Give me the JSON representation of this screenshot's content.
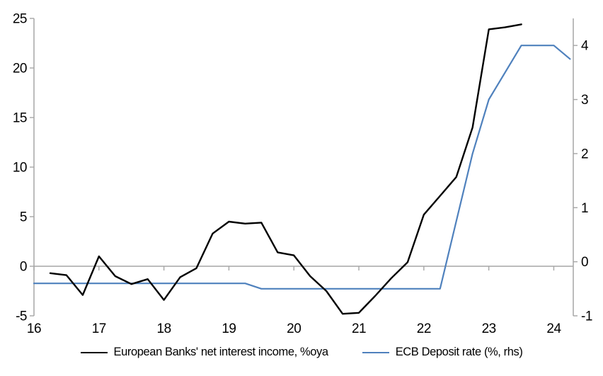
{
  "chart_data": {
    "type": "line",
    "title": "",
    "xlabel": "",
    "ylabel_left": "",
    "ylabel_right": "",
    "grid": "off",
    "legend_position": "bottom-center",
    "axis_color": "#a6a6a6",
    "label_color": "#000000",
    "x_axis": {
      "tick_years": [
        16,
        17,
        18,
        19,
        20,
        21,
        22,
        23,
        24
      ],
      "range": [
        16,
        24.3
      ]
    },
    "left_axis": {
      "ticks": [
        -5,
        0,
        5,
        10,
        15,
        20,
        25
      ],
      "range": [
        -5,
        25
      ]
    },
    "right_axis": {
      "ticks": [
        -1,
        0,
        1,
        2,
        3,
        4
      ],
      "range": [
        -1,
        4.5
      ]
    },
    "series": [
      {
        "name": "European Banks' net interest income, %oya",
        "axis": "left",
        "color": "#000000",
        "stroke_width": 2.4,
        "x": [
          16.25,
          16.5,
          16.75,
          17.0,
          17.25,
          17.5,
          17.75,
          18.0,
          18.25,
          18.5,
          18.75,
          19.0,
          19.25,
          19.5,
          19.75,
          20.0,
          20.25,
          20.5,
          20.75,
          21.0,
          21.25,
          21.5,
          21.75,
          22.0,
          22.25,
          22.5,
          22.75,
          23.0,
          23.25,
          23.5
        ],
        "values": [
          -0.7,
          -0.9,
          -2.9,
          1.0,
          -1.0,
          -1.8,
          -1.3,
          -3.4,
          -1.1,
          -0.2,
          3.3,
          4.5,
          4.3,
          4.4,
          1.4,
          1.1,
          -1.0,
          -2.5,
          -4.8,
          -4.7,
          -3.0,
          -1.2,
          0.4,
          5.2,
          7.1,
          9.0,
          14.0,
          23.9,
          24.1,
          24.4
        ]
      },
      {
        "name": "ECB Deposit rate (%, rhs)",
        "axis": "right",
        "color": "#4f81bd",
        "stroke_width": 2.2,
        "x": [
          16.0,
          16.25,
          16.5,
          16.75,
          17.0,
          17.25,
          17.5,
          17.75,
          18.0,
          18.25,
          18.5,
          18.75,
          19.0,
          19.25,
          19.5,
          19.75,
          20.0,
          20.25,
          20.5,
          20.75,
          21.0,
          21.25,
          21.5,
          21.75,
          22.0,
          22.25,
          22.5,
          22.75,
          23.0,
          23.25,
          23.5,
          23.75,
          24.0,
          24.25
        ],
        "values": [
          -0.4,
          -0.4,
          -0.4,
          -0.4,
          -0.4,
          -0.4,
          -0.4,
          -0.4,
          -0.4,
          -0.4,
          -0.4,
          -0.4,
          -0.4,
          -0.4,
          -0.5,
          -0.5,
          -0.5,
          -0.5,
          -0.5,
          -0.5,
          -0.5,
          -0.5,
          -0.5,
          -0.5,
          -0.5,
          -0.5,
          0.75,
          2.0,
          3.0,
          3.5,
          4.0,
          4.0,
          4.0,
          3.75
        ]
      }
    ]
  },
  "legend": {
    "items": [
      {
        "label": "European Banks' net interest income, %oya"
      },
      {
        "label": "ECB Deposit rate (%, rhs)"
      }
    ]
  }
}
